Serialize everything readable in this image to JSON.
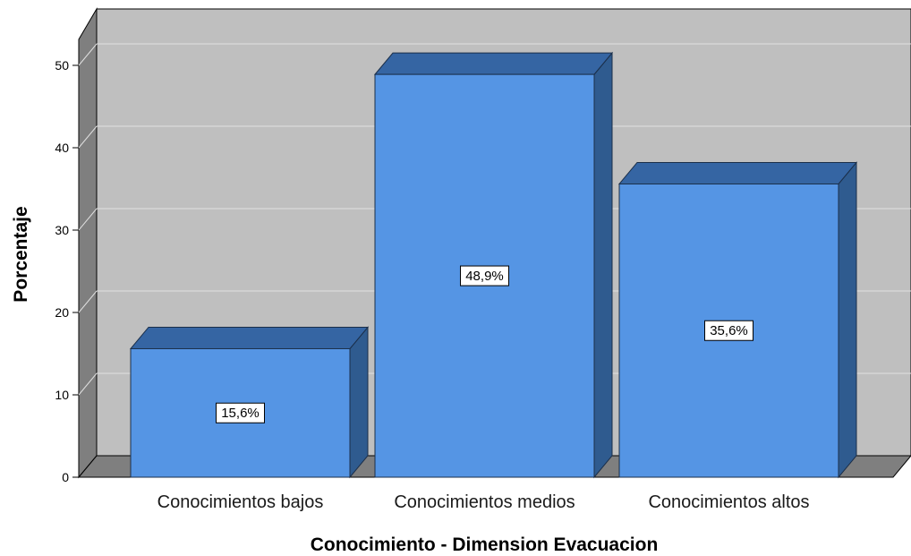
{
  "chart_data": {
    "type": "bar",
    "style": "3d",
    "categories": [
      "Conocimientos bajos",
      "Conocimientos medios",
      "Conocimientos altos"
    ],
    "values": [
      15.6,
      48.9,
      35.6
    ],
    "data_labels": [
      "15,6%",
      "48,9%",
      "35,6%"
    ],
    "xlabel": "Conocimiento - Dimension Evacuacion",
    "ylabel": "Porcentaje",
    "ylim": [
      0,
      50
    ],
    "yticks": [
      "0",
      "10",
      "20",
      "30",
      "40",
      "50"
    ],
    "grid": true,
    "legend": "none"
  },
  "colors": {
    "bar_front": "#5595e4",
    "bar_top": "#3565a3",
    "bar_side": "#2f5b8f",
    "wall_back": "#bfbfbf",
    "wall_left": "#7f7f7f",
    "floor": "#7f7f7f",
    "grid": "#e0e0e0"
  }
}
